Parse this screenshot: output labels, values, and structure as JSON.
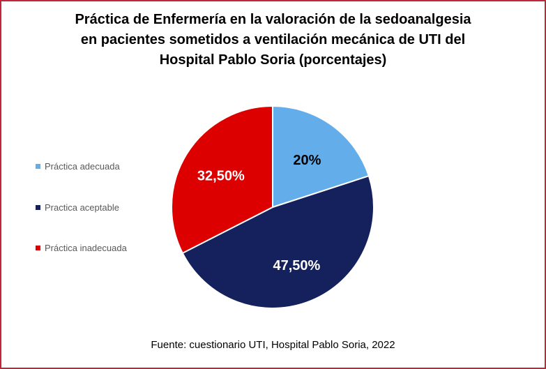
{
  "chart_data": {
    "type": "pie",
    "title": [
      "Práctica de Enfermería en la valoración de la sedoanalgesia",
      "en pacientes sometidos a ventilación mecánica de UTI del",
      "Hospital Pablo Soria (porcentajes)"
    ],
    "categories": [
      "Práctica adecuada",
      "Practica aceptable",
      "Práctica inadecuada"
    ],
    "values": [
      20,
      47.5,
      32.5
    ],
    "data_labels": [
      "20%",
      "47,50%",
      "32,50%"
    ],
    "colors": [
      "#63aeea",
      "#14215c",
      "#dd0000"
    ],
    "label_colors": [
      "#000000",
      "#ffffff",
      "#ffffff"
    ],
    "legend_position": "left",
    "source": "Fuente: cuestionario UTI, Hospital Pablo Soria, 2022"
  }
}
